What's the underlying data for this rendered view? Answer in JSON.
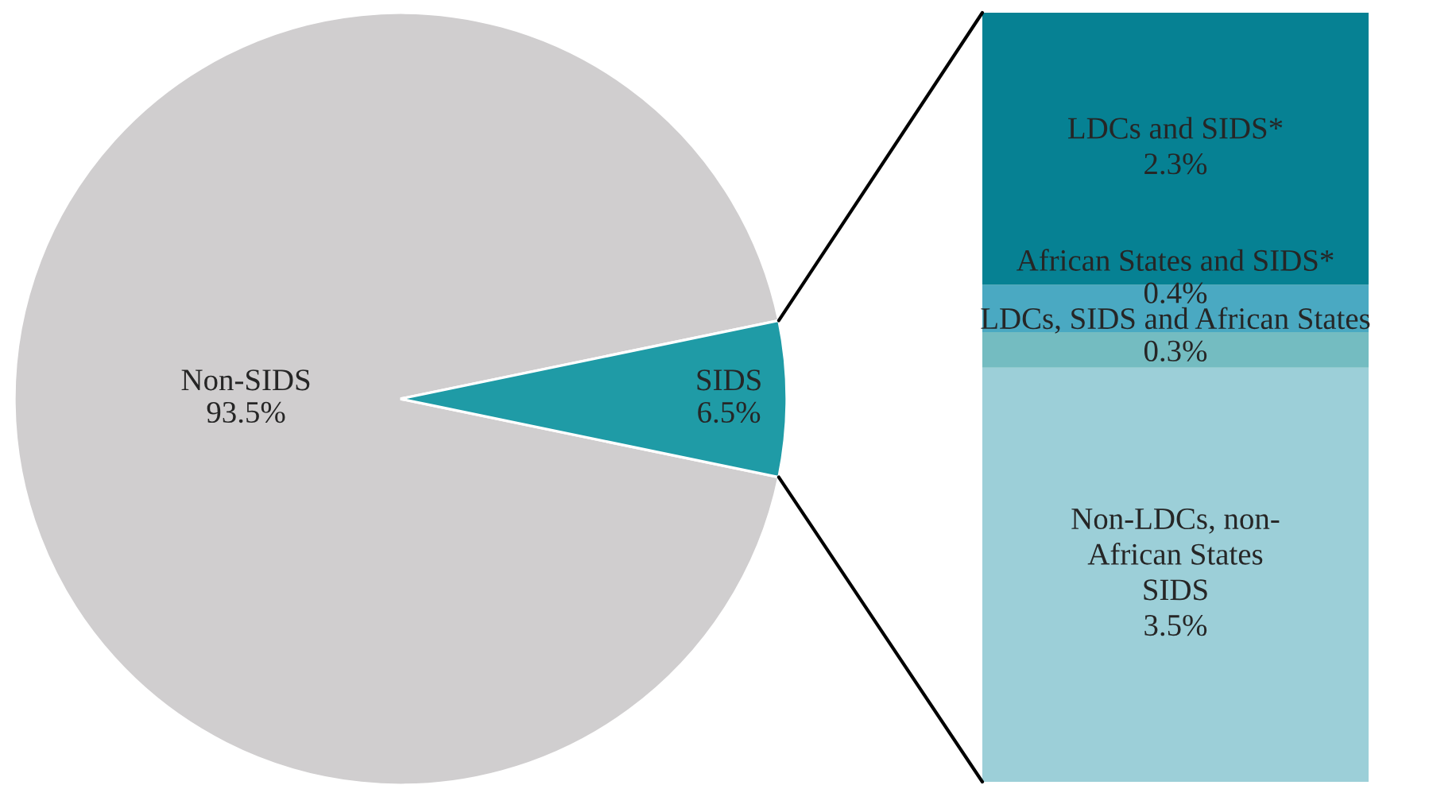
{
  "chart_data": [
    {
      "type": "pie",
      "categories": [
        "Non-SIDS",
        "SIDS"
      ],
      "values": [
        93.5,
        6.5
      ],
      "value_labels": [
        "93.5%",
        "6.5%"
      ],
      "colors": [
        "#d0cecf",
        "#1f9ba6"
      ],
      "legend": false
    },
    {
      "type": "bar",
      "stacked": true,
      "categories": [
        null
      ],
      "ylim": [
        0,
        6.5
      ],
      "tick_labels": false,
      "legend": false,
      "series": [
        {
          "name": "Non-LDCs, non-\nAfrican States\nSIDS",
          "color": "#9ccfd8",
          "values": [
            3.5
          ],
          "value_labels": [
            "3.5%"
          ]
        },
        {
          "name": "LDCs, SIDS and African States",
          "color": "#74bcc1",
          "values": [
            0.3
          ],
          "value_labels": [
            "0.3%"
          ]
        },
        {
          "name": "African States and SIDS*",
          "color": "#4aa9c2",
          "values": [
            0.4
          ],
          "value_labels": [
            "0.4%"
          ]
        },
        {
          "name": "LDCs and SIDS*",
          "color": "#068193",
          "values": [
            2.3
          ],
          "value_labels": [
            "2.3%"
          ]
        }
      ]
    }
  ]
}
